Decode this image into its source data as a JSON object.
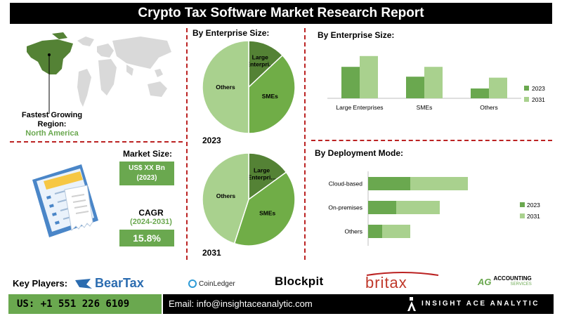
{
  "title": "Crypto Tax Software Market Research Report",
  "colors": {
    "dark_green": "#6aa84f",
    "light_green": "#a9d18e",
    "mid_green": "#70ad47",
    "deep_green": "#548235",
    "red": "#b22222"
  },
  "region": {
    "label": "Fastest Growing Region:",
    "value": "North America"
  },
  "market_size": {
    "label": "Market Size:",
    "value": "US$ XX Bn",
    "year": "(2023)"
  },
  "cagr": {
    "label": "CAGR",
    "period": "(2024-2031)",
    "value": "15.8%"
  },
  "pie_section": {
    "title": "By Enterprise Size:",
    "year_2023": "2023",
    "year_2031": "2031"
  },
  "bar_section": {
    "title": "By Enterprise Size:"
  },
  "deploy_section": {
    "title": "By Deployment Mode:"
  },
  "key_players": {
    "label": "Key Players:",
    "logos": [
      "BearTax",
      "CoinLedger",
      "Blockpit",
      "britax",
      "ACCOUNTING",
      "SERVICES"
    ]
  },
  "footer": {
    "phone": "US: +1 551 226 6109",
    "email": "Email: info@insightaceanalytic.com",
    "brand": "INSIGHT ACE ANALYTIC"
  },
  "chart_data": [
    {
      "type": "pie",
      "year": "2023",
      "categories": [
        "Large Enterpri...",
        "SMEs",
        "Others"
      ],
      "values": [
        13,
        37,
        50
      ]
    },
    {
      "type": "pie",
      "year": "2031",
      "categories": [
        "Large Enterpri...",
        "SMEs",
        "Others"
      ],
      "values": [
        15,
        40,
        45
      ]
    },
    {
      "type": "bar",
      "categories": [
        "Large Enterprises",
        "SMEs",
        "Others"
      ],
      "series": [
        {
          "name": "2023",
          "values": [
            3.2,
            2.2,
            1.0
          ]
        },
        {
          "name": "2031",
          "values": [
            4.3,
            3.2,
            2.1
          ]
        }
      ],
      "ylim": [
        0,
        5
      ],
      "legend": "right"
    },
    {
      "type": "bar",
      "orientation": "horizontal",
      "stacked": true,
      "categories": [
        "Cloud-based",
        "On-premises",
        "Others"
      ],
      "series": [
        {
          "name": "2023",
          "values": [
            3.0,
            2.0,
            1.0
          ]
        },
        {
          "name": "2031",
          "values": [
            4.1,
            3.1,
            2.0
          ]
        }
      ],
      "xlim": [
        0,
        10
      ],
      "legend": "right"
    }
  ]
}
